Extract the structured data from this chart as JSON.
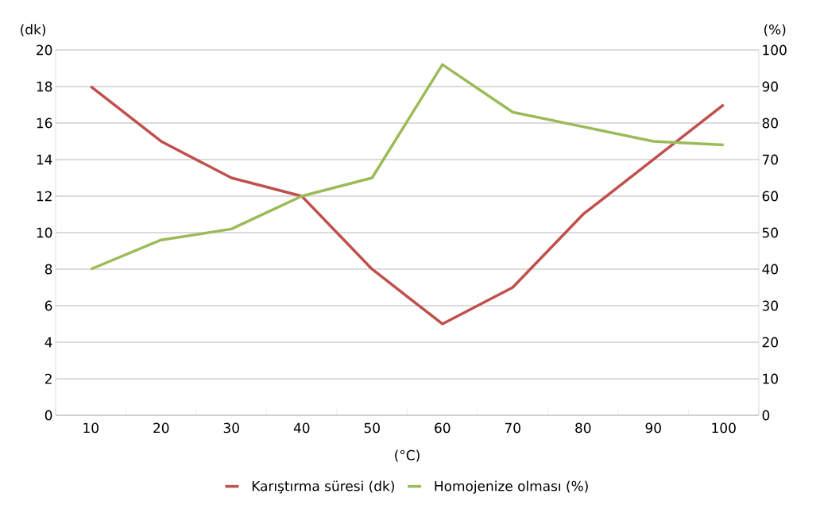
{
  "chart_data": {
    "type": "line",
    "categories": [
      "10",
      "20",
      "30",
      "40",
      "50",
      "60",
      "70",
      "80",
      "90",
      "100"
    ],
    "xlabel": "(°C)",
    "ylabel": "(dk)",
    "y2label": "(%)",
    "series": [
      {
        "name": "Karıştırma süresi (dk)",
        "color": "#c0504d",
        "values": [
          18,
          15,
          13,
          12,
          8,
          5,
          7,
          11,
          14,
          17
        ]
      },
      {
        "name": "Homojenize olması (%)",
        "color": "#9bbb59",
        "axis": "y2",
        "values": [
          40,
          48,
          51,
          60,
          65,
          96,
          83,
          79,
          75,
          74
        ]
      }
    ],
    "ylim": [
      0,
      20
    ],
    "yticks": [
      0,
      2,
      4,
      6,
      8,
      10,
      12,
      14,
      16,
      18,
      20
    ],
    "y2lim": [
      0,
      100
    ],
    "y2ticks": [
      0,
      10,
      20,
      30,
      40,
      50,
      60,
      70,
      80,
      90,
      100
    ],
    "grid": "y",
    "legend": "bottom"
  }
}
